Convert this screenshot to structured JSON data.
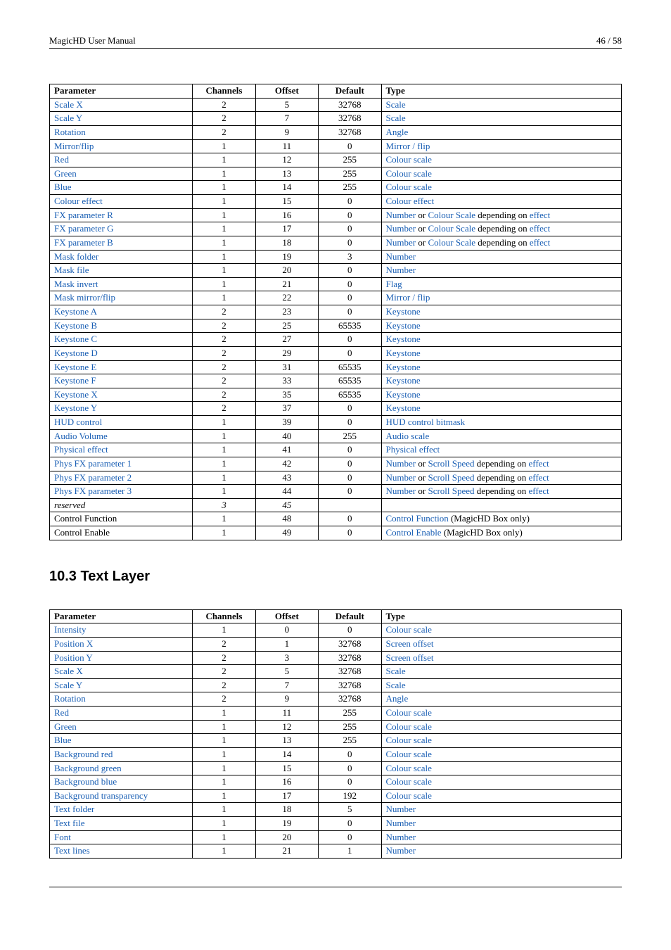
{
  "header": {
    "left": "MagicHD User Manual",
    "right": "46 / 58"
  },
  "columns": {
    "param": "Parameter",
    "channels": "Channels",
    "offset": "Offset",
    "defalt": "Default",
    "type": "Type"
  },
  "black": " (MagicHD Box only)",
  "depending": " depending on ",
  "or": " or ",
  "table1": {
    "rows": [
      {
        "param": "Scale X",
        "plink": true,
        "ch": "2",
        "off": "5",
        "def": "32768",
        "type": [
          {
            "t": "Scale",
            "l": true
          }
        ]
      },
      {
        "param": "Scale Y",
        "plink": true,
        "ch": "2",
        "off": "7",
        "def": "32768",
        "type": [
          {
            "t": "Scale",
            "l": true
          }
        ]
      },
      {
        "param": "Rotation",
        "plink": true,
        "ch": "2",
        "off": "9",
        "def": "32768",
        "type": [
          {
            "t": "Angle",
            "l": true
          }
        ]
      },
      {
        "param": "Mirror/flip",
        "plink": true,
        "ch": "1",
        "off": "11",
        "def": "0",
        "type": [
          {
            "t": "Mirror / flip",
            "l": true
          }
        ]
      },
      {
        "param": "Red",
        "plink": true,
        "ch": "1",
        "off": "12",
        "def": "255",
        "type": [
          {
            "t": "Colour scale",
            "l": true
          }
        ]
      },
      {
        "param": "Green",
        "plink": true,
        "ch": "1",
        "off": "13",
        "def": "255",
        "type": [
          {
            "t": "Colour scale",
            "l": true
          }
        ]
      },
      {
        "param": "Blue",
        "plink": true,
        "ch": "1",
        "off": "14",
        "def": "255",
        "type": [
          {
            "t": "Colour scale",
            "l": true
          }
        ]
      },
      {
        "param": "Colour effect",
        "plink": true,
        "ch": "1",
        "off": "15",
        "def": "0",
        "type": [
          {
            "t": "Colour effect",
            "l": true
          }
        ]
      },
      {
        "param": "FX parameter R",
        "plink": true,
        "ch": "1",
        "off": "16",
        "def": "0",
        "type": "colourscale"
      },
      {
        "param": "FX parameter G",
        "plink": true,
        "ch": "1",
        "off": "17",
        "def": "0",
        "type": "colourscale"
      },
      {
        "param": "FX parameter B",
        "plink": true,
        "ch": "1",
        "off": "18",
        "def": "0",
        "type": "colourscale"
      },
      {
        "param": "Mask folder",
        "plink": true,
        "ch": "1",
        "off": "19",
        "def": "3",
        "type": [
          {
            "t": "Number",
            "l": true
          }
        ]
      },
      {
        "param": "Mask file",
        "plink": true,
        "ch": "1",
        "off": "20",
        "def": "0",
        "type": [
          {
            "t": "Number",
            "l": true
          }
        ]
      },
      {
        "param": "Mask invert",
        "plink": true,
        "ch": "1",
        "off": "21",
        "def": "0",
        "type": [
          {
            "t": "Flag",
            "l": true
          }
        ]
      },
      {
        "param": "Mask mirror/flip",
        "plink": true,
        "ch": "1",
        "off": "22",
        "def": "0",
        "type": [
          {
            "t": "Mirror / flip",
            "l": true
          }
        ]
      },
      {
        "param": "Keystone A",
        "plink": true,
        "ch": "2",
        "off": "23",
        "def": "0",
        "type": [
          {
            "t": "Keystone",
            "l": true
          }
        ]
      },
      {
        "param": "Keystone B",
        "plink": true,
        "ch": "2",
        "off": "25",
        "def": "65535",
        "type": [
          {
            "t": "Keystone",
            "l": true
          }
        ]
      },
      {
        "param": "Keystone C",
        "plink": true,
        "ch": "2",
        "off": "27",
        "def": "0",
        "type": [
          {
            "t": "Keystone",
            "l": true
          }
        ]
      },
      {
        "param": "Keystone D",
        "plink": true,
        "ch": "2",
        "off": "29",
        "def": "0",
        "type": [
          {
            "t": "Keystone",
            "l": true
          }
        ]
      },
      {
        "param": "Keystone E",
        "plink": true,
        "ch": "2",
        "off": "31",
        "def": "65535",
        "type": [
          {
            "t": "Keystone",
            "l": true
          }
        ]
      },
      {
        "param": "Keystone F",
        "plink": true,
        "ch": "2",
        "off": "33",
        "def": "65535",
        "type": [
          {
            "t": "Keystone",
            "l": true
          }
        ]
      },
      {
        "param": "Keystone X",
        "plink": true,
        "ch": "2",
        "off": "35",
        "def": "65535",
        "type": [
          {
            "t": "Keystone",
            "l": true
          }
        ]
      },
      {
        "param": "Keystone Y",
        "plink": true,
        "ch": "2",
        "off": "37",
        "def": "0",
        "type": [
          {
            "t": "Keystone",
            "l": true
          }
        ]
      },
      {
        "param": "HUD control",
        "plink": true,
        "ch": "1",
        "off": "39",
        "def": "0",
        "type": [
          {
            "t": "HUD control bitmask",
            "l": true
          }
        ]
      },
      {
        "param": "Audio Volume",
        "plink": true,
        "ch": "1",
        "off": "40",
        "def": "255",
        "type": [
          {
            "t": "Audio scale",
            "l": true
          }
        ]
      },
      {
        "param": "Physical effect",
        "plink": true,
        "ch": "1",
        "off": "41",
        "def": "0",
        "type": [
          {
            "t": "Physical effect",
            "l": true
          }
        ]
      },
      {
        "param": "Phys FX parameter 1",
        "plink": true,
        "ch": "1",
        "off": "42",
        "def": "0",
        "type": "scrollspeed"
      },
      {
        "param": "Phys FX parameter 2",
        "plink": true,
        "ch": "1",
        "off": "43",
        "def": "0",
        "type": "scrollspeed"
      },
      {
        "param": "Phys FX parameter 3",
        "plink": true,
        "ch": "1",
        "off": "44",
        "def": "0",
        "type": "scrollspeed"
      },
      {
        "param": "reserved",
        "plink": false,
        "italic": true,
        "ch": "3",
        "chItalic": true,
        "off": "45",
        "offItalic": true,
        "def": "",
        "type": []
      },
      {
        "param": "Control Function",
        "plink": false,
        "ch": "1",
        "off": "48",
        "def": "0",
        "type": [
          {
            "t": "Control Function",
            "l": true
          },
          {
            "t": " (MagicHD Box only)",
            "l": false
          }
        ]
      },
      {
        "param": "Control Enable",
        "plink": false,
        "ch": "1",
        "off": "49",
        "def": "0",
        "type": [
          {
            "t": "Control Enable",
            "l": true
          },
          {
            "t": " (MagicHD Box only)",
            "l": false
          }
        ]
      }
    ],
    "colourScaleParts": {
      "a": "Number",
      "b": "Colour Scale",
      "c": "effect"
    },
    "scrollSpeedParts": {
      "a": "Number",
      "b": "Scroll Speed",
      "c": "effect"
    }
  },
  "section": {
    "title": "10.3   Text Layer"
  },
  "table2": {
    "rows": [
      {
        "param": "Intensity",
        "plink": true,
        "ch": "1",
        "off": "0",
        "def": "0",
        "type": [
          {
            "t": "Colour scale",
            "l": true
          }
        ]
      },
      {
        "param": "Position X",
        "plink": true,
        "ch": "2",
        "off": "1",
        "def": "32768",
        "type": [
          {
            "t": "Screen offset",
            "l": true
          }
        ]
      },
      {
        "param": "Position Y",
        "plink": true,
        "ch": "2",
        "off": "3",
        "def": "32768",
        "type": [
          {
            "t": "Screen offset",
            "l": true
          }
        ]
      },
      {
        "param": "Scale X",
        "plink": true,
        "ch": "2",
        "off": "5",
        "def": "32768",
        "type": [
          {
            "t": "Scale",
            "l": true
          }
        ]
      },
      {
        "param": "Scale Y",
        "plink": true,
        "ch": "2",
        "off": "7",
        "def": "32768",
        "type": [
          {
            "t": "Scale",
            "l": true
          }
        ]
      },
      {
        "param": "Rotation",
        "plink": true,
        "ch": "2",
        "off": "9",
        "def": "32768",
        "type": [
          {
            "t": "Angle",
            "l": true
          }
        ]
      },
      {
        "param": "Red",
        "plink": true,
        "ch": "1",
        "off": "11",
        "def": "255",
        "type": [
          {
            "t": "Colour scale",
            "l": true
          }
        ]
      },
      {
        "param": "Green",
        "plink": true,
        "ch": "1",
        "off": "12",
        "def": "255",
        "type": [
          {
            "t": "Colour scale",
            "l": true
          }
        ]
      },
      {
        "param": "Blue",
        "plink": true,
        "ch": "1",
        "off": "13",
        "def": "255",
        "type": [
          {
            "t": "Colour scale",
            "l": true
          }
        ]
      },
      {
        "param": "Background red",
        "plink": true,
        "ch": "1",
        "off": "14",
        "def": "0",
        "type": [
          {
            "t": "Colour scale",
            "l": true
          }
        ]
      },
      {
        "param": "Background green",
        "plink": true,
        "ch": "1",
        "off": "15",
        "def": "0",
        "type": [
          {
            "t": "Colour scale",
            "l": true
          }
        ]
      },
      {
        "param": "Background blue",
        "plink": true,
        "ch": "1",
        "off": "16",
        "def": "0",
        "type": [
          {
            "t": "Colour scale",
            "l": true
          }
        ]
      },
      {
        "param": "Background transparency",
        "plink": true,
        "ch": "1",
        "off": "17",
        "def": "192",
        "type": [
          {
            "t": "Colour scale",
            "l": true
          }
        ]
      },
      {
        "param": "Text folder",
        "plink": true,
        "ch": "1",
        "off": "18",
        "def": "5",
        "type": [
          {
            "t": "Number",
            "l": true
          }
        ]
      },
      {
        "param": "Text file",
        "plink": true,
        "ch": "1",
        "off": "19",
        "def": "0",
        "type": [
          {
            "t": "Number",
            "l": true
          }
        ]
      },
      {
        "param": "Font",
        "plink": true,
        "ch": "1",
        "off": "20",
        "def": "0",
        "type": [
          {
            "t": "Number",
            "l": true
          }
        ]
      },
      {
        "param": "Text lines",
        "plink": true,
        "ch": "1",
        "off": "21",
        "def": "1",
        "type": [
          {
            "t": "Number",
            "l": true
          }
        ]
      }
    ]
  }
}
